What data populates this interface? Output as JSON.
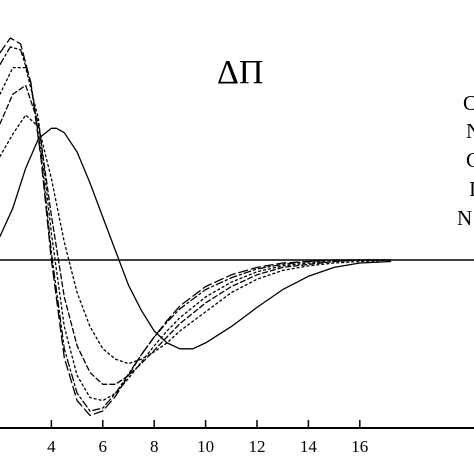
{
  "chart_data": {
    "type": "line",
    "title": "ΔΠ",
    "xlabel": "",
    "ylabel": "",
    "xlim": [
      2.0,
      17.2
    ],
    "ylim": [
      -1.05,
      1.52
    ],
    "x_ticks": [
      "4",
      "6",
      "8",
      "10",
      "12",
      "14",
      "16"
    ],
    "x_tick_values": [
      4,
      6,
      8,
      10,
      12,
      14,
      16
    ],
    "zero_line": 0,
    "legend_entries": [
      "C",
      "N",
      "C",
      "I",
      "N"
    ],
    "legend_position": "right",
    "grid": false,
    "series": [
      {
        "style": "solid",
        "x": [
          2.0,
          2.5,
          3.0,
          3.5,
          4.0,
          4.2,
          4.5,
          5.0,
          5.5,
          6.0,
          6.5,
          7.0,
          7.5,
          8.0,
          8.5,
          9.0,
          9.5,
          10.0,
          11.0,
          12.0,
          13.0,
          14.0,
          15.0,
          16.0,
          17.2
        ],
        "y": [
          0.16,
          0.35,
          0.62,
          0.82,
          0.89,
          0.89,
          0.86,
          0.73,
          0.52,
          0.29,
          0.06,
          -0.17,
          -0.34,
          -0.48,
          -0.56,
          -0.6,
          -0.6,
          -0.56,
          -0.45,
          -0.32,
          -0.2,
          -0.11,
          -0.05,
          -0.02,
          -0.01
        ]
      },
      {
        "style": "dotted",
        "x": [
          2.0,
          2.5,
          3.0,
          3.5,
          4.0,
          4.5,
          5.0,
          5.5,
          6.0,
          6.5,
          7.0,
          7.5,
          8.0,
          8.5,
          9.0,
          10.0,
          11.0,
          12.0,
          13.0,
          14.0,
          15.0,
          16.0,
          17.2
        ],
        "y": [
          0.7,
          0.85,
          0.98,
          0.9,
          0.55,
          0.12,
          -0.22,
          -0.45,
          -0.6,
          -0.67,
          -0.7,
          -0.67,
          -0.62,
          -0.56,
          -0.48,
          -0.35,
          -0.22,
          -0.13,
          -0.07,
          -0.04,
          -0.02,
          -0.01,
          0.0
        ]
      },
      {
        "style": "dashed",
        "x": [
          2.0,
          2.5,
          3.0,
          3.5,
          4.0,
          4.5,
          5.0,
          5.5,
          6.0,
          6.5,
          7.0,
          7.5,
          8.0,
          8.5,
          9.0,
          10.0,
          11.0,
          12.0,
          13.0,
          14.0,
          15.0,
          16.0,
          17.2
        ],
        "y": [
          0.92,
          1.12,
          1.18,
          0.92,
          0.3,
          -0.25,
          -0.58,
          -0.76,
          -0.84,
          -0.84,
          -0.78,
          -0.7,
          -0.61,
          -0.52,
          -0.43,
          -0.29,
          -0.18,
          -0.1,
          -0.05,
          -0.03,
          -0.01,
          0.0,
          0.0
        ]
      },
      {
        "style": "dotted",
        "x": [
          2.0,
          2.5,
          3.0,
          3.5,
          4.0,
          4.5,
          5.0,
          5.5,
          6.0,
          6.5,
          7.0,
          7.5,
          8.0,
          8.5,
          9.0,
          10.0,
          11.0,
          12.0,
          13.0,
          14.0,
          15.0,
          16.0,
          17.2
        ],
        "y": [
          1.12,
          1.3,
          1.3,
          0.95,
          0.18,
          -0.45,
          -0.78,
          -0.93,
          -0.95,
          -0.9,
          -0.8,
          -0.69,
          -0.58,
          -0.48,
          -0.39,
          -0.25,
          -0.15,
          -0.08,
          -0.04,
          -0.02,
          -0.01,
          0.0,
          0.0
        ]
      },
      {
        "style": "dashdot",
        "x": [
          2.0,
          2.4,
          2.8,
          3.2,
          3.6,
          4.0,
          4.5,
          5.0,
          5.5,
          6.0,
          6.5,
          7.0,
          7.5,
          8.0,
          8.5,
          9.0,
          10.0,
          11.0,
          12.0,
          13.0,
          14.0,
          15.0,
          16.0,
          17.2
        ],
        "y": [
          1.32,
          1.44,
          1.42,
          1.2,
          0.72,
          0.05,
          -0.6,
          -0.9,
          -1.02,
          -1.0,
          -0.9,
          -0.77,
          -0.64,
          -0.52,
          -0.42,
          -0.33,
          -0.2,
          -0.12,
          -0.06,
          -0.03,
          -0.01,
          0.0,
          0.0,
          0.0
        ]
      },
      {
        "style": "longdash",
        "x": [
          2.0,
          2.4,
          2.8,
          3.2,
          3.6,
          4.0,
          4.5,
          5.0,
          5.5,
          6.0,
          6.5,
          7.0,
          7.5,
          8.0,
          8.5,
          9.0,
          10.0,
          11.0,
          12.0,
          13.0,
          14.0,
          15.0,
          16.0,
          17.2
        ],
        "y": [
          1.4,
          1.5,
          1.46,
          1.2,
          0.68,
          0.0,
          -0.66,
          -0.95,
          -1.05,
          -1.02,
          -0.92,
          -0.78,
          -0.64,
          -0.52,
          -0.41,
          -0.31,
          -0.18,
          -0.1,
          -0.05,
          -0.02,
          -0.01,
          0.0,
          0.0,
          0.0
        ]
      }
    ]
  }
}
